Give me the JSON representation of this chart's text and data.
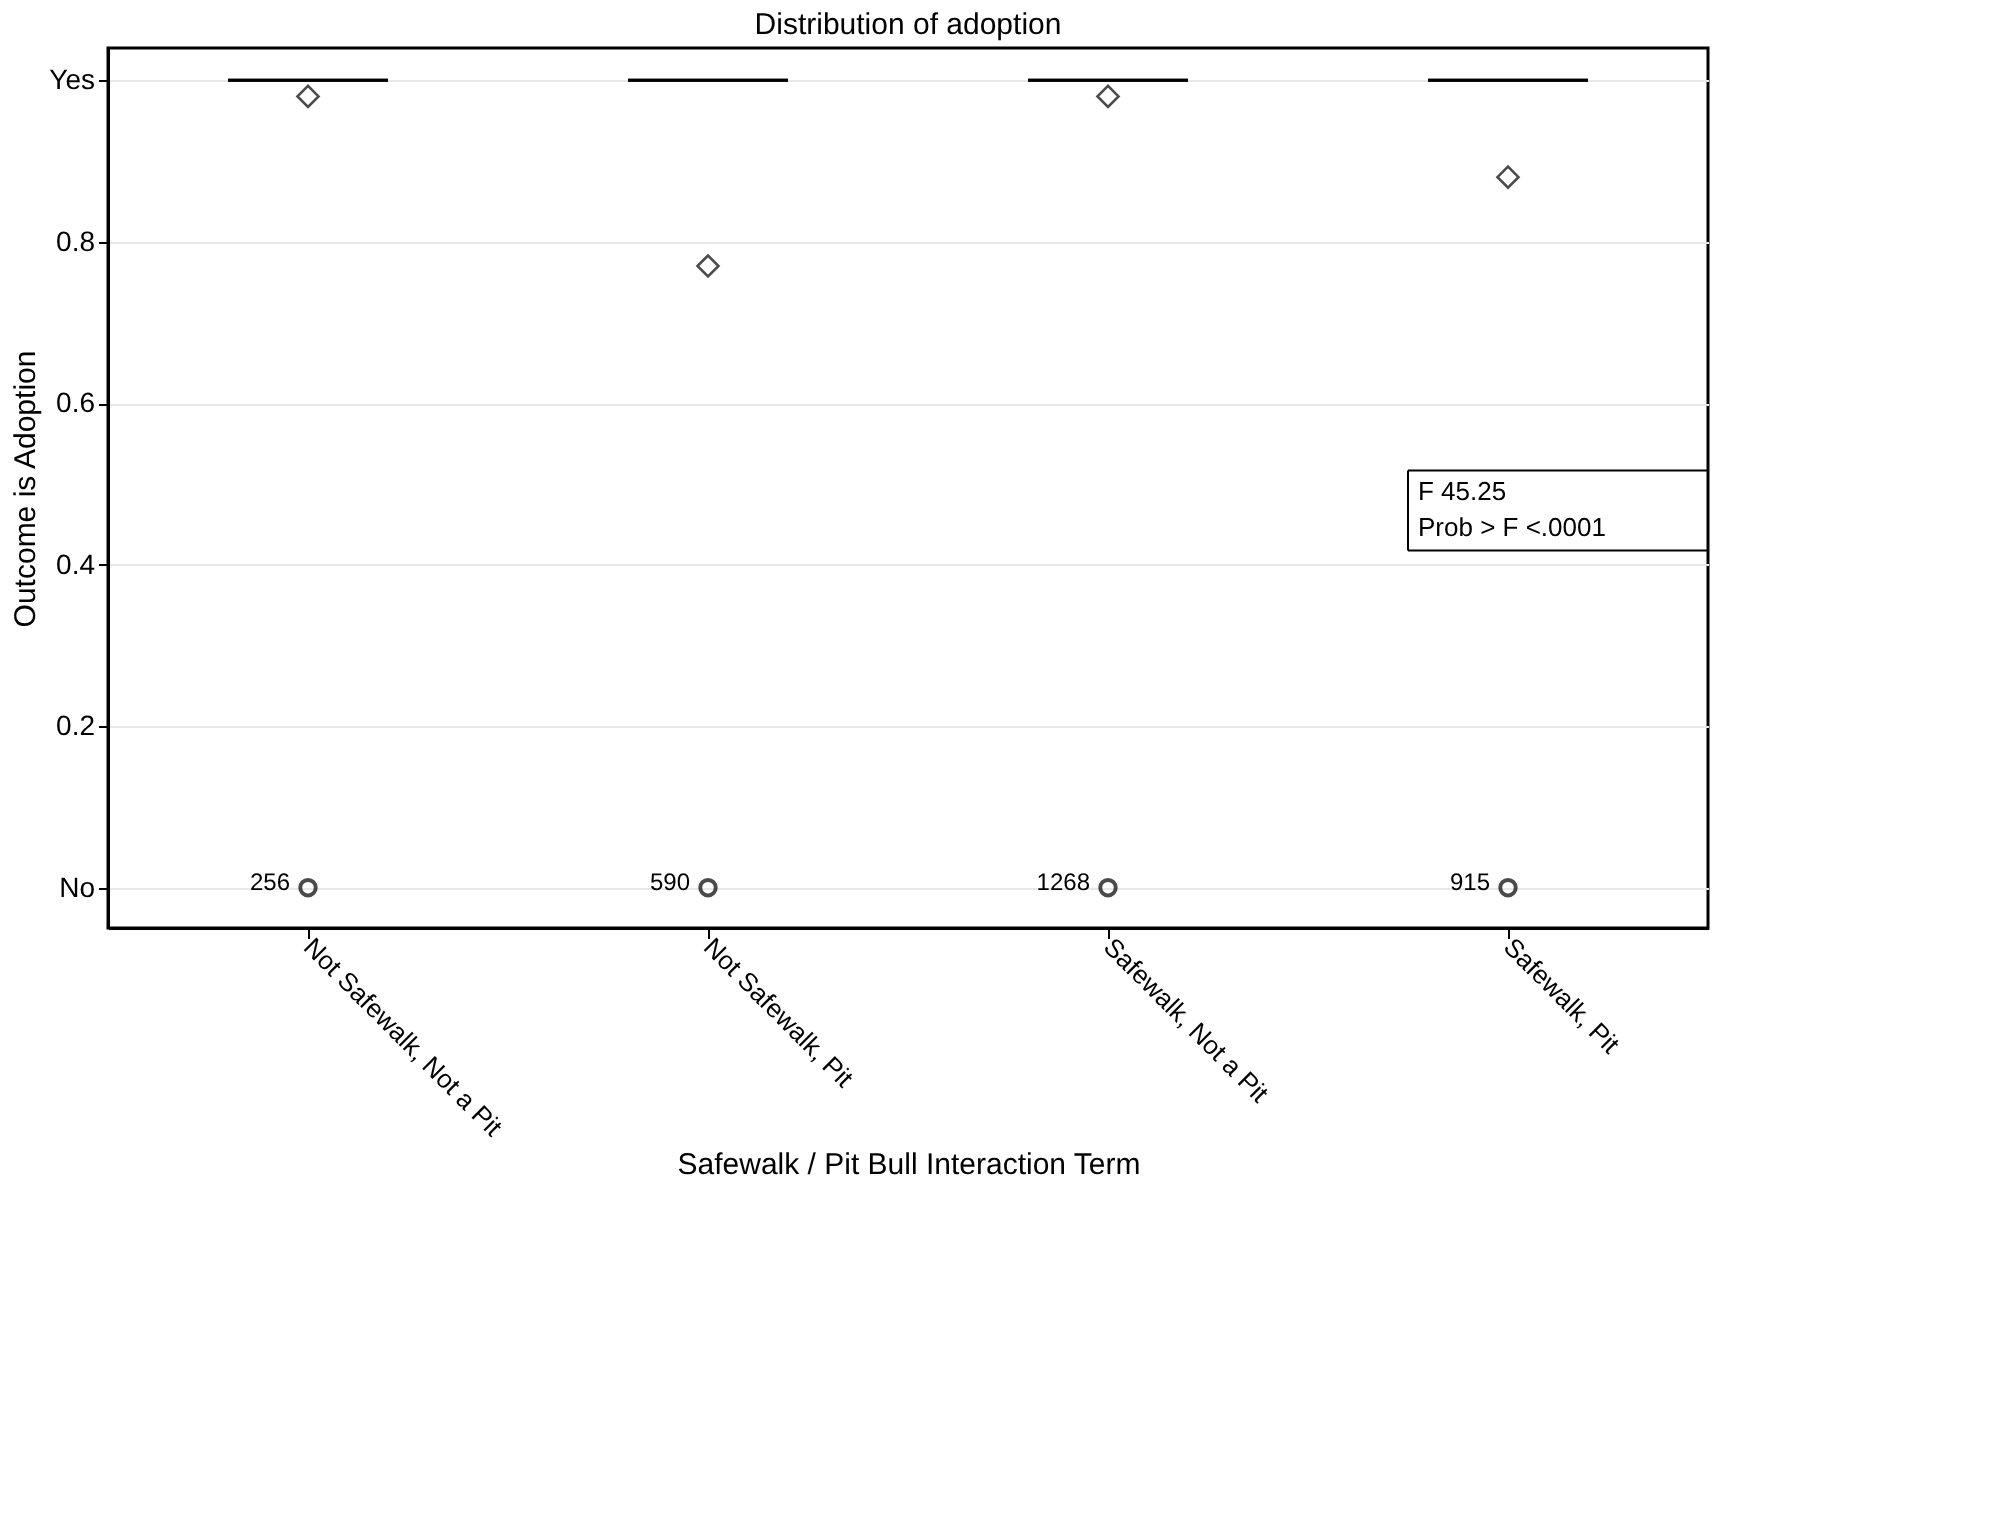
{
  "chart_data": {
    "type": "box",
    "title": "Distribution of adoption",
    "xlabel": "Safewalk / Pit Bull Interaction Term",
    "ylabel": "Outcome is Adoption",
    "categories": [
      "Not Safewalk, Not a Pit",
      "Not Safewalk, Pit",
      "Safewalk, Not a Pit",
      "Safewalk, Pit"
    ],
    "boxes": [
      {
        "low": 1,
        "q1": 1,
        "median": 1,
        "q3": 1,
        "high": 1,
        "mean": 0.98,
        "outliers": [
          0
        ]
      },
      {
        "low": 1,
        "q1": 1,
        "median": 1,
        "q3": 1,
        "high": 1,
        "mean": 0.77,
        "outliers": [
          0
        ]
      },
      {
        "low": 1,
        "q1": 1,
        "median": 1,
        "q3": 1,
        "high": 1,
        "mean": 0.98,
        "outliers": [
          0
        ]
      },
      {
        "low": 1,
        "q1": 1,
        "median": 1,
        "q3": 1,
        "high": 1,
        "mean": 0.88,
        "outliers": [
          0
        ]
      }
    ],
    "ylim": [
      -0.05,
      1.04
    ],
    "yticks": [
      {
        "value": 0,
        "label": "No"
      },
      0.2,
      0.4,
      0.6,
      0.8,
      {
        "value": 1,
        "label": "Yes"
      }
    ],
    "grid": "y",
    "marker": "diamond",
    "annotations": [
      "256",
      "590",
      "1268",
      "915",
      "F 45.25",
      "Prob > F <.0001"
    ]
  }
}
